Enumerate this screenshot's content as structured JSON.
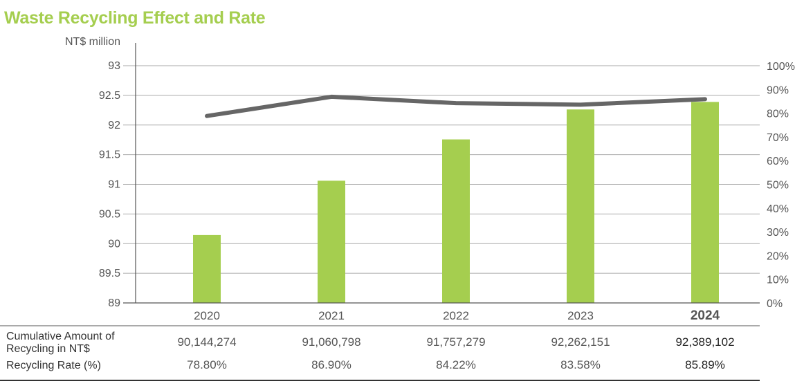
{
  "colors": {
    "accent": "#a5ce4f",
    "line": "#666666",
    "grid": "#aaaaaa"
  },
  "chart_data": {
    "type": "bar+line",
    "title": "Waste Recycling Effect and Rate",
    "ylabel": "NT$ million",
    "categories": [
      "2020",
      "2021",
      "2022",
      "2023",
      "2024"
    ],
    "highlight_category": "2024",
    "ylim": [
      89,
      93
    ],
    "yticks": [
      "93",
      "92.5",
      "92",
      "91.5",
      "91",
      "90.5",
      "90",
      "89.5",
      "89"
    ],
    "y2lim": [
      0,
      100
    ],
    "y2ticks": [
      "100%",
      "90%",
      "80%",
      "70%",
      "60%",
      "50%",
      "40%",
      "30%",
      "20%",
      "10%",
      "0%"
    ],
    "series": [
      {
        "type": "bar",
        "axis": "left",
        "values": [
          90.144274,
          91.060798,
          91.757279,
          92.262151,
          92.389102
        ]
      },
      {
        "type": "line",
        "axis": "right",
        "values": [
          78.8,
          86.9,
          84.22,
          83.58,
          85.89
        ]
      }
    ],
    "grid": true
  },
  "table": {
    "rows": [
      {
        "label_lines": [
          "Cumulative Amount of",
          "Recycling in NT$"
        ],
        "values": [
          "90,144,274",
          "91,060,798",
          "91,757,279",
          "92,262,151",
          "92,389,102"
        ]
      },
      {
        "label_lines": [
          "Recycling Rate (%)"
        ],
        "values": [
          "78.80%",
          "86.90%",
          "84.22%",
          "83.58%",
          "85.89%"
        ]
      }
    ]
  }
}
